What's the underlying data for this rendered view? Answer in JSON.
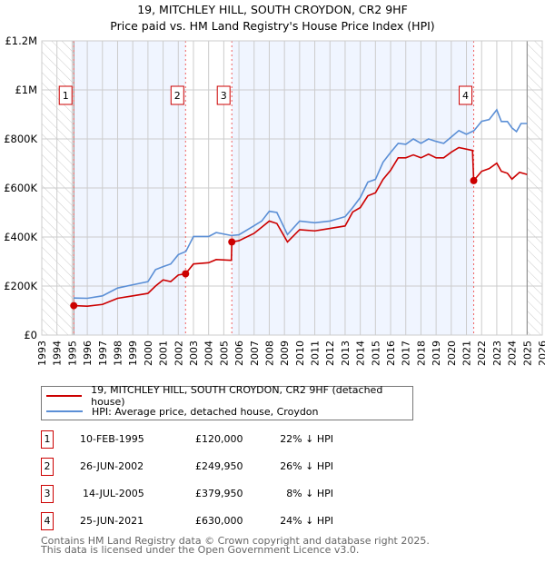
{
  "chart_data": {
    "type": "line",
    "title": "19, MITCHLEY HILL, SOUTH CROYDON, CR2 9HF",
    "subtitle": "Price paid vs. HM Land Registry's House Price Index (HPI)",
    "xlim": [
      1993,
      2026
    ],
    "ylim": [
      0,
      1200000
    ],
    "x_ticks": [
      "1993",
      "1994",
      "1995",
      "1996",
      "1997",
      "1998",
      "1999",
      "2000",
      "2001",
      "2002",
      "2003",
      "2004",
      "2005",
      "2006",
      "2007",
      "2008",
      "2009",
      "2010",
      "2011",
      "2012",
      "2013",
      "2014",
      "2015",
      "2016",
      "2017",
      "2018",
      "2019",
      "2020",
      "2021",
      "2022",
      "2023",
      "2024",
      "2025",
      "2026"
    ],
    "y_ticks": [
      {
        "v": 0,
        "label": "£0"
      },
      {
        "v": 200000,
        "label": "£200K"
      },
      {
        "v": 400000,
        "label": "£400K"
      },
      {
        "v": 600000,
        "label": "£600K"
      },
      {
        "v": 800000,
        "label": "£800K"
      },
      {
        "v": 1000000,
        "label": "£1M"
      },
      {
        "v": 1200000,
        "label": "£1.2M"
      }
    ],
    "grid": true,
    "series": [
      {
        "name": "19, MITCHLEY HILL, SOUTH CROYDON, CR2 9HF (detached house)",
        "color": "#cc0000",
        "x": [
          1995.11,
          1996,
          1997,
          1998,
          1999,
          2000,
          2000.5,
          2001,
          2001.5,
          2002,
          2002.48,
          2003,
          2004,
          2004.5,
          2005.5,
          2005.53,
          2006,
          2007,
          2007.5,
          2008,
          2008.5,
          2009.2,
          2010,
          2011,
          2012,
          2013,
          2013.5,
          2014,
          2014.5,
          2015,
          2015.5,
          2016,
          2016.5,
          2017,
          2017.5,
          2018,
          2018.5,
          2019,
          2019.5,
          2020,
          2020.5,
          2021.4,
          2021.48,
          2022,
          2022.5,
          2023,
          2023.3,
          2023.7,
          2024,
          2024.5,
          2025
        ],
        "y": [
          120000,
          118000,
          125000,
          150000,
          160000,
          170000,
          200000,
          225000,
          218000,
          245000,
          249950,
          290000,
          295000,
          308000,
          305000,
          379950,
          385000,
          415000,
          440000,
          465000,
          455000,
          380000,
          430000,
          425000,
          435000,
          445000,
          502000,
          520000,
          568000,
          580000,
          635000,
          672000,
          723000,
          723000,
          735000,
          723000,
          738000,
          723000,
          723000,
          746000,
          765000,
          753000,
          630000,
          668000,
          679000,
          701000,
          668000,
          660000,
          636000,
          664000,
          655000
        ]
      },
      {
        "name": "HPI: Average price, detached house, Croydon",
        "color": "#5b8fd6",
        "x": [
          1995.11,
          1996,
          1997,
          1998,
          1999,
          2000,
          2000.5,
          2001,
          2001.5,
          2002,
          2002.5,
          2003,
          2004,
          2004.5,
          2005.5,
          2006,
          2007,
          2007.5,
          2008,
          2008.5,
          2009.2,
          2010,
          2011,
          2012,
          2013,
          2013.5,
          2014,
          2014.5,
          2015,
          2015.5,
          2016,
          2016.5,
          2017,
          2017.5,
          2018,
          2018.5,
          2019,
          2019.5,
          2020,
          2020.5,
          2021,
          2021.5,
          2022,
          2022.5,
          2023,
          2023.3,
          2023.7,
          2024,
          2024.3,
          2024.6,
          2025
        ],
        "y": [
          151000,
          150000,
          160000,
          192000,
          205000,
          218000,
          267000,
          279000,
          290000,
          328000,
          341000,
          402000,
          402000,
          418000,
          406000,
          409000,
          446000,
          465000,
          505000,
          500000,
          410000,
          465000,
          458000,
          465000,
          483000,
          520000,
          561000,
          624000,
          635000,
          705000,
          745000,
          782000,
          778000,
          800000,
          782000,
          800000,
          790000,
          782000,
          808000,
          834000,
          819000,
          834000,
          872000,
          879000,
          919000,
          871000,
          871000,
          845000,
          830000,
          863000,
          863000
        ]
      }
    ],
    "sales": [
      {
        "n": "1",
        "x": 1995.11,
        "y": 120000,
        "date": "10-FEB-1995",
        "price": "£120,000",
        "hpi": "22% ↓ HPI"
      },
      {
        "n": "2",
        "x": 2002.48,
        "y": 249950,
        "date": "26-JUN-2002",
        "price": "£249,950",
        "hpi": "26% ↓ HPI"
      },
      {
        "n": "3",
        "x": 2005.53,
        "y": 379950,
        "date": "14-JUL-2005",
        "price": "£379,950",
        "hpi": "8% ↓ HPI"
      },
      {
        "n": "4",
        "x": 2021.48,
        "y": 630000,
        "date": "25-JUN-2021",
        "price": "£630,000",
        "hpi": "24% ↓ HPI"
      }
    ],
    "hatched_ranges": [
      [
        1993,
        1995.11
      ],
      [
        2025.0,
        2026
      ]
    ]
  },
  "footer": {
    "line1": "Contains HM Land Registry data © Crown copyright and database right 2025.",
    "line2": "This data is licensed under the Open Government Licence v3.0."
  }
}
